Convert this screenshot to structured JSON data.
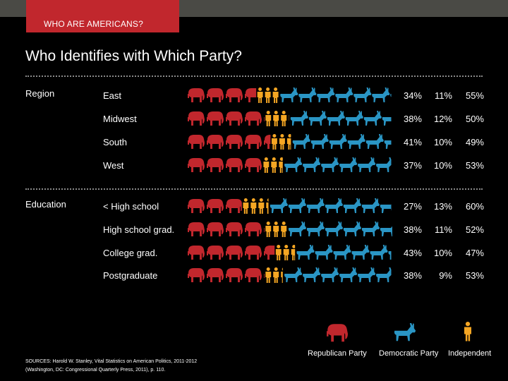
{
  "header": {
    "tab_label": "WHO ARE AMERICANS?"
  },
  "colors": {
    "republican": "#c1272d",
    "democratic": "#2a95c4",
    "independent": "#f5a623",
    "dotted_rule": "#8a8a8a"
  },
  "legend": {
    "republican": "Republican Party",
    "democratic": "Democratic Party",
    "independent": "Independent"
  },
  "sources": {
    "line1": "SOURCES: Harold W. Stanley, Vital Statistics on American Politics, 2011-2012",
    "line2": "(Washington, DC: Congressional Quarterly Press, 2011), p. 110."
  },
  "chart_data": {
    "type": "pictograph",
    "title": "Who Identifies with Which Party?",
    "series": [
      {
        "name": "Republican Party",
        "color": "#c1272d",
        "icon": "elephant-icon"
      },
      {
        "name": "Independent",
        "color": "#f5a623",
        "icon": "person-icon"
      },
      {
        "name": "Democratic Party",
        "color": "#2a95c4",
        "icon": "donkey-icon"
      }
    ],
    "groups": [
      {
        "name": "Region",
        "rows": [
          {
            "label": "East",
            "republican": 34,
            "independent": 11,
            "democratic": 55
          },
          {
            "label": "Midwest",
            "republican": 38,
            "independent": 12,
            "democratic": 50
          },
          {
            "label": "South",
            "republican": 41,
            "independent": 10,
            "democratic": 49
          },
          {
            "label": "West",
            "republican": 37,
            "independent": 10,
            "democratic": 53
          }
        ]
      },
      {
        "name": "Education",
        "rows": [
          {
            "label": "< High school",
            "republican": 27,
            "independent": 13,
            "democratic": 60
          },
          {
            "label": "High school grad.",
            "republican": 38,
            "independent": 11,
            "democratic": 52
          },
          {
            "label": "College grad.",
            "republican": 43,
            "independent": 10,
            "democratic": 47
          },
          {
            "label": "Postgraduate",
            "republican": 38,
            "independent": 9,
            "democratic": 53
          }
        ]
      }
    ]
  }
}
